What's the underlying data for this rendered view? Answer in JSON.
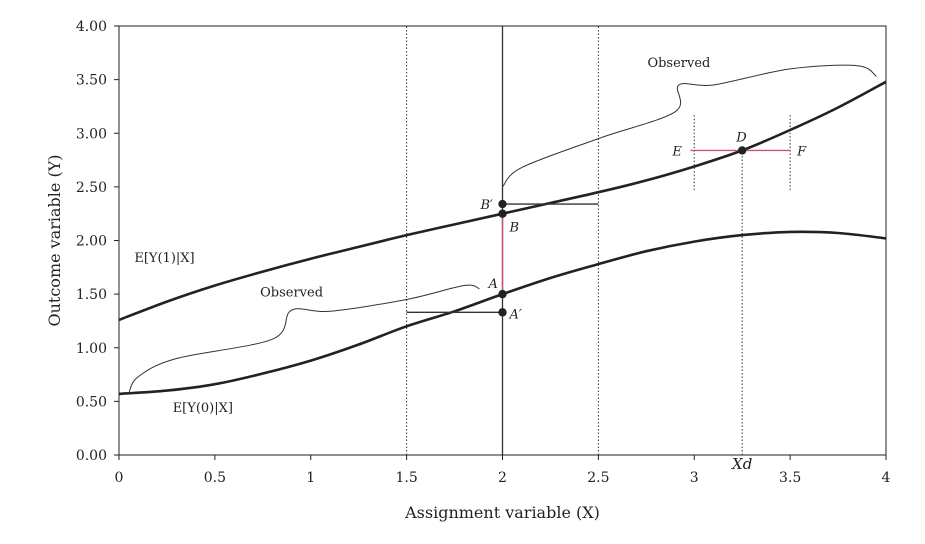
{
  "chart_data": {
    "type": "line",
    "xlabel": "Assignment variable (X)",
    "ylabel": "Outcome variable (Y)",
    "xlim": [
      0,
      4
    ],
    "ylim": [
      0,
      4
    ],
    "x_ticks": [
      0,
      0.5,
      1,
      1.5,
      2,
      2.5,
      3,
      3.5,
      4
    ],
    "x_tick_labels": [
      "0",
      "0.5",
      "1",
      "1.5",
      "2",
      "2.5",
      "3",
      "3.5",
      "4"
    ],
    "y_ticks": [
      0,
      0.5,
      1,
      1.5,
      2,
      2.5,
      3,
      3.5,
      4
    ],
    "y_tick_labels": [
      "0.00",
      "0.50",
      "1.00",
      "1.50",
      "2.00",
      "2.50",
      "3.00",
      "3.50",
      "4.00"
    ],
    "grid": false,
    "series": [
      {
        "name": "E[Y(1)|X]",
        "x": [
          0,
          0.25,
          0.5,
          0.75,
          1,
          1.25,
          1.5,
          1.75,
          2,
          2.25,
          2.5,
          2.75,
          3,
          3.25,
          3.5,
          3.75,
          4
        ],
        "y": [
          1.26,
          1.43,
          1.58,
          1.71,
          1.83,
          1.94,
          2.05,
          2.15,
          2.25,
          2.35,
          2.45,
          2.56,
          2.69,
          2.84,
          3.03,
          3.24,
          3.48
        ]
      },
      {
        "name": "E[Y(0)|X]",
        "x": [
          0,
          0.25,
          0.5,
          0.75,
          1,
          1.25,
          1.5,
          1.75,
          2,
          2.25,
          2.5,
          2.75,
          3,
          3.25,
          3.5,
          3.75,
          4
        ],
        "y": [
          0.57,
          0.6,
          0.66,
          0.76,
          0.88,
          1.03,
          1.2,
          1.34,
          1.5,
          1.65,
          1.78,
          1.9,
          1.99,
          2.05,
          2.08,
          2.07,
          2.02
        ]
      }
    ],
    "curve_labels": [
      {
        "text": "E[Y(1)|X]",
        "x": 0.08,
        "y": 1.8
      },
      {
        "text": "E[Y(0)|X]",
        "x": 0.28,
        "y": 0.4
      }
    ],
    "vertical_lines": [
      {
        "x": 1.5,
        "style": "dotted",
        "y_from": 0,
        "y_to": 4
      },
      {
        "x": 2.5,
        "style": "dotted",
        "y_from": 0,
        "y_to": 4
      },
      {
        "x": 2,
        "style": "solid",
        "y_from": 0,
        "y_to": 4
      },
      {
        "x": 3,
        "style": "dotted",
        "y_from": 2.47,
        "y_to": 3.17
      },
      {
        "x": 3.5,
        "style": "dotted",
        "y_from": 2.47,
        "y_to": 3.17
      },
      {
        "x": 3.25,
        "style": "dotted",
        "y_from": 0,
        "y_to": 2.84
      }
    ],
    "segments": [
      {
        "name": "A-B",
        "x1": 2,
        "y1": 1.5,
        "x2": 2,
        "y2": 2.25,
        "color": "#d4506f"
      },
      {
        "name": "E-F",
        "x1": 2.98,
        "y1": 2.84,
        "x2": 3.5,
        "y2": 2.84,
        "color": "#d4506f"
      },
      {
        "name": "Bprime-horizontal",
        "x1": 2,
        "y1": 2.34,
        "x2": 2.5,
        "y2": 2.34,
        "color": "#333333"
      },
      {
        "name": "Aprime-horizontal",
        "x1": 1.5,
        "y1": 1.33,
        "x2": 2,
        "y2": 1.33,
        "color": "#333333"
      }
    ],
    "points": [
      {
        "label": "A",
        "x": 2,
        "y": 1.5,
        "dx": -14,
        "dy": -6
      },
      {
        "label": "A′",
        "x": 2,
        "y": 1.33,
        "dx": 7,
        "dy": 6
      },
      {
        "label": "B",
        "x": 2,
        "y": 2.25,
        "dx": 7,
        "dy": 18
      },
      {
        "label": "B′",
        "x": 2,
        "y": 2.34,
        "dx": -22,
        "dy": 5
      },
      {
        "label": "D",
        "x": 3.25,
        "y": 2.84,
        "dx": -6,
        "dy": -9
      },
      {
        "label": "E",
        "x": 2.98,
        "y": 2.84,
        "dx": -18,
        "dy": 5,
        "marker": false
      },
      {
        "label": "F",
        "x": 3.5,
        "y": 2.84,
        "dx": 7,
        "dy": 5,
        "marker": false
      }
    ],
    "braces": [
      {
        "label": "Observed",
        "x": [
          0.05,
          0.1,
          0.3,
          0.8,
          0.9,
          1.1,
          1.5,
          1.8,
          1.88
        ],
        "y": [
          0.57,
          0.73,
          0.9,
          1.08,
          1.35,
          1.34,
          1.45,
          1.58,
          1.55
        ],
        "label_x": 0.9,
        "label_y": 1.48
      },
      {
        "label": "Observed",
        "x": [
          2.0,
          2.1,
          2.5,
          2.9,
          2.92,
          3.1,
          3.5,
          3.85,
          3.95
        ],
        "y": [
          2.5,
          2.68,
          2.95,
          3.2,
          3.45,
          3.45,
          3.6,
          3.63,
          3.53
        ],
        "label_x": 2.92,
        "label_y": 3.62
      }
    ],
    "annotations": [
      {
        "text": "Xd",
        "x": 3.25,
        "y": -0.13
      }
    ]
  }
}
